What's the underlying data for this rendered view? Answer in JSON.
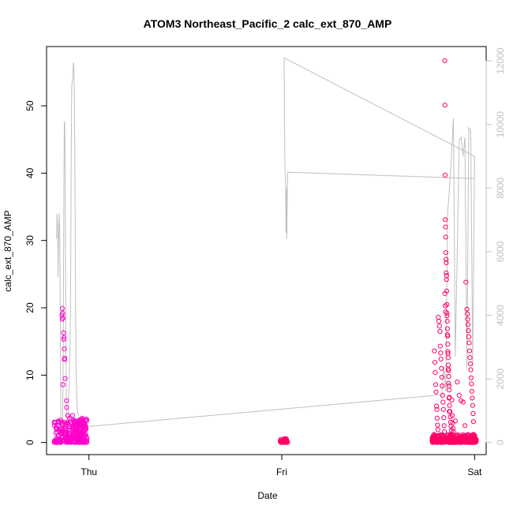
{
  "chart_data": {
    "type": "scatter",
    "title": "ATOM3 Northeast_Pacific_2 calc_ext_870_AMP",
    "xlabel": "Date",
    "ylabel": "calc_ext_870_AMP",
    "x_ticks": [
      {
        "label": "Thu",
        "x": 1.0
      },
      {
        "label": "Fri",
        "x": 2.0
      },
      {
        "label": "Sat",
        "x": 3.0
      }
    ],
    "xlim": [
      0.78,
      3.06
    ],
    "ylim": [
      -1.8,
      58.8
    ],
    "y_ticks": [
      0,
      10,
      20,
      30,
      40,
      50
    ],
    "y2lim": [
      -380,
      12450
    ],
    "y2_ticks": [
      0,
      2000,
      4000,
      6000,
      8000,
      10000,
      12000
    ],
    "grid": false,
    "colors": {
      "points_light": "#ff00cc",
      "points_dark": "#ff0066",
      "altitude_line": "#c0c0c0"
    },
    "series": [
      {
        "name": "",
        "axis": "left",
        "kind": "points",
        "color": "#ff00cc",
        "clusters": [
          {
            "x0": 0.82,
            "x1": 0.99,
            "n": 260,
            "low": 0,
            "high": 3.5
          }
        ],
        "x": [
          0.86,
          0.862,
          0.864,
          0.866,
          0.868,
          0.87,
          0.872,
          0.874,
          0.876,
          0.861,
          0.869,
          0.873,
          0.865,
          0.883,
          0.884,
          0.89,
          0.9,
          0.905,
          0.91,
          0.915,
          0.92,
          0.93,
          0.935,
          0.95,
          0.955,
          0.96,
          0.965,
          0.97,
          0.975,
          0.98,
          0.985,
          0.99
        ],
        "y": [
          18.9,
          19.9,
          19.2,
          18.5,
          16.3,
          15.6,
          13.9,
          12.5,
          9.5,
          18.3,
          15.3,
          12.3,
          8.6,
          6.2,
          5.2,
          4.0,
          3.6,
          3.0,
          3.5,
          4.0,
          3.2,
          2.8,
          3.0,
          2.6,
          3.2,
          3.4,
          3.6,
          3.0,
          2.8,
          3.3,
          2.0,
          0.6
        ]
      },
      {
        "name": "",
        "axis": "left",
        "kind": "points",
        "color": "#ff0066",
        "clusters": [
          {
            "x0": 1.99,
            "x1": 2.03,
            "n": 40,
            "low": 0,
            "high": 0.6
          },
          {
            "x0": 2.78,
            "x1": 3.01,
            "n": 320,
            "low": 0,
            "high": 1.2
          }
        ],
        "x": [
          2.845,
          2.846,
          2.847,
          2.848,
          2.849,
          2.85,
          2.852,
          2.853,
          2.854,
          2.855,
          2.856,
          2.857,
          2.858,
          2.859,
          2.86,
          2.861,
          2.862,
          2.863,
          2.864,
          2.865,
          2.866,
          2.867,
          2.868,
          2.869,
          2.87,
          2.872,
          2.874,
          2.876,
          2.878,
          2.88,
          2.79,
          2.792,
          2.794,
          2.796,
          2.798,
          2.8,
          2.802,
          2.804,
          2.806,
          2.808,
          2.81,
          2.812,
          2.815,
          2.818,
          2.82,
          2.822,
          2.824,
          2.826,
          2.828,
          2.83,
          2.832,
          2.834,
          2.836,
          2.838,
          2.84,
          2.842,
          2.844,
          2.846,
          2.848,
          2.85,
          2.851,
          2.853,
          2.855,
          2.857,
          2.859,
          2.861,
          2.863,
          2.865,
          2.867,
          2.869,
          2.882,
          2.884,
          2.886,
          2.888,
          2.89,
          2.9,
          2.91,
          2.92,
          2.93,
          2.94,
          2.95,
          2.955,
          2.96,
          2.962,
          2.964,
          2.966,
          2.968,
          2.97,
          2.972,
          2.974,
          2.976,
          2.978,
          2.98,
          2.982,
          2.984,
          2.986,
          2.988,
          2.99,
          2.992,
          2.994
        ],
        "y": [
          56.7,
          50.1,
          39.7,
          33.1,
          32.0,
          30.5,
          27.2,
          25.2,
          24.2,
          22.5,
          20.5,
          19.2,
          18.0,
          16.9,
          15.8,
          14.6,
          13.2,
          12.6,
          11.5,
          10.7,
          9.8,
          8.4,
          7.8,
          6.7,
          5.5,
          4.6,
          3.8,
          3.0,
          2.4,
          1.8,
          1.2,
          13.6,
          11.9,
          10.4,
          8.6,
          7.5,
          5.4,
          4.9,
          3.6,
          2.6,
          1.9,
          18.6,
          18.0,
          17.3,
          16.5,
          14.3,
          13.3,
          12.4,
          11.0,
          9.7,
          8.4,
          7.0,
          6.0,
          4.9,
          3.7,
          2.5,
          1.6,
          22.1,
          20.3,
          19.4,
          28.2,
          26.7,
          24.8,
          18.8,
          16.0,
          13.5,
          10.9,
          8.8,
          6.6,
          4.6,
          6.3,
          4.0,
          2.9,
          2.1,
          1.6,
          3.2,
          9.0,
          7.0,
          6.2,
          6.0,
          2.5,
          23.8,
          19.8,
          19.1,
          18.3,
          17.5,
          16.6,
          15.7,
          14.8,
          13.6,
          12.6,
          11.7,
          10.8,
          9.6,
          8.7,
          7.6,
          6.6,
          5.5,
          4.3,
          3.1
        ]
      },
      {
        "name": "",
        "axis": "right",
        "kind": "line",
        "color": "#c0c0c0",
        "x": [
          0.832,
          0.834,
          0.836,
          0.838,
          0.84,
          0.842,
          0.846,
          0.848,
          0.85,
          0.852,
          0.854,
          0.856,
          0.858,
          0.86,
          0.862,
          0.864,
          0.866,
          0.868,
          0.87,
          0.872,
          0.874,
          0.876,
          0.878,
          0.88,
          0.882,
          0.884,
          0.886,
          0.888,
          0.89,
          0.892,
          0.894,
          0.896,
          0.898,
          0.9,
          0.902,
          0.904,
          0.906,
          0.908,
          0.91,
          0.912,
          0.914,
          0.916,
          0.918,
          0.92,
          0.922,
          0.924,
          0.926,
          0.928,
          0.93,
          0.932,
          0.934,
          0.936,
          0.938,
          0.94,
          0.942,
          0.944,
          0.946,
          0.948,
          0.95,
          0.952,
          0.954,
          0.956,
          0.958,
          0.96,
          0.962,
          0.964,
          0.966,
          0.968,
          0.97,
          0.972,
          0.974,
          0.976,
          0.978,
          0.98,
          0.982,
          0.984,
          0.986,
          0.988,
          0.99,
          2.83,
          2.84,
          2.85,
          2.86,
          2.87,
          2.88,
          2.89,
          2.9,
          2.91,
          2.92,
          2.93,
          2.94,
          2.95,
          2.96,
          2.97,
          2.98,
          2.99,
          3.0,
          2.01,
          2.012,
          2.014,
          2.016,
          2.018,
          2.02,
          2.022,
          2.024,
          2.026,
          2.03,
          3.0
        ],
        "y": [
          6400,
          7200,
          7000,
          6600,
          5200,
          6200,
          7200,
          6800,
          5500,
          2800,
          1200,
          300,
          200,
          150,
          300,
          900,
          2500,
          5200,
          8200,
          10000,
          10100,
          8800,
          6500,
          3800,
          1800,
          700,
          400,
          300,
          500,
          900,
          1200,
          1700,
          2100,
          2500,
          3200,
          4200,
          6600,
          9000,
          11000,
          11300,
          11400,
          11500,
          11800,
          11950,
          11800,
          10800,
          9400,
          7200,
          5100,
          3200,
          2100,
          1500,
          1200,
          1000,
          950,
          900,
          850,
          800,
          700,
          600,
          550,
          500,
          450,
          400,
          350,
          300,
          290,
          280,
          300,
          320,
          340,
          360,
          380,
          400,
          420,
          440,
          460,
          480,
          500,
          1500,
          2400,
          1600,
          7200,
          8000,
          9000,
          10200,
          2700,
          6000,
          9500,
          9600,
          9000,
          9600,
          2300,
          9900,
          9800,
          2400,
          9000,
          12100,
          12100,
          10000,
          8600,
          8400,
          8200,
          6600,
          8000,
          6400,
          8500,
          8300
        ]
      }
    ]
  }
}
